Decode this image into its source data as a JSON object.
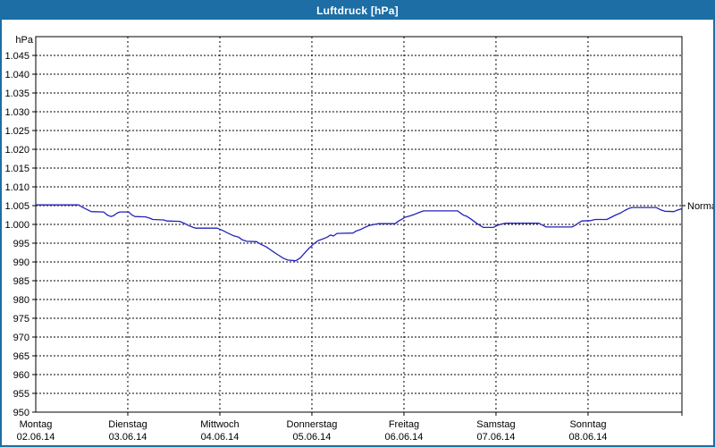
{
  "window": {
    "title": "Luftdruck [hPa]"
  },
  "theme": {
    "frame_color": "#1d6ea5",
    "title_text_color": "#ffffff",
    "plot_background": "#ffffff",
    "grid_color": "#000000",
    "axis_color": "#000000",
    "line_color": "#2222bb"
  },
  "chart_data": {
    "type": "line",
    "title": "Luftdruck [hPa]",
    "ylabel": "hPa",
    "ylim": [
      950,
      1050
    ],
    "grid": true,
    "yticks": [
      {
        "value": 1045,
        "label": "1.045"
      },
      {
        "value": 1040,
        "label": "1.040"
      },
      {
        "value": 1035,
        "label": "1.035"
      },
      {
        "value": 1030,
        "label": "1.030"
      },
      {
        "value": 1025,
        "label": "1.025"
      },
      {
        "value": 1020,
        "label": "1.020"
      },
      {
        "value": 1015,
        "label": "1.015"
      },
      {
        "value": 1010,
        "label": "1.010"
      },
      {
        "value": 1005,
        "label": "1.005"
      },
      {
        "value": 1000,
        "label": "1.000"
      },
      {
        "value": 995,
        "label": "995"
      },
      {
        "value": 990,
        "label": "990"
      },
      {
        "value": 985,
        "label": "985"
      },
      {
        "value": 980,
        "label": "980"
      },
      {
        "value": 975,
        "label": "975"
      },
      {
        "value": 970,
        "label": "970"
      },
      {
        "value": 965,
        "label": "965"
      },
      {
        "value": 960,
        "label": "960"
      },
      {
        "value": 955,
        "label": "955"
      },
      {
        "value": 950,
        "label": "950"
      }
    ],
    "x_axis": {
      "extent_days": 7.02,
      "days": [
        {
          "name": "Montag",
          "date": "02.06.14"
        },
        {
          "name": "Dienstag",
          "date": "03.06.14"
        },
        {
          "name": "Mittwoch",
          "date": "04.06.14"
        },
        {
          "name": "Donnerstag",
          "date": "05.06.14"
        },
        {
          "name": "Freitag",
          "date": "06.06.14"
        },
        {
          "name": "Samstag",
          "date": "07.06.14"
        },
        {
          "name": "Sonntag",
          "date": "08.06.14"
        }
      ]
    },
    "annotations": [
      {
        "label": "Normal",
        "value": 1005,
        "side": "right"
      }
    ],
    "series": [
      {
        "name": "Luftdruck",
        "unit": "hPa",
        "color": "#2222bb",
        "points_days_hpa": [
          [
            0.0,
            1005.2
          ],
          [
            0.466,
            1005.2
          ],
          [
            0.505,
            1004.6
          ],
          [
            0.553,
            1004.0
          ],
          [
            0.602,
            1003.4
          ],
          [
            0.738,
            1003.3
          ],
          [
            0.777,
            1002.5
          ],
          [
            0.816,
            1002.1
          ],
          [
            0.845,
            1002.3
          ],
          [
            0.883,
            1003.0
          ],
          [
            0.913,
            1003.3
          ],
          [
            1.01,
            1003.3
          ],
          [
            1.039,
            1002.6
          ],
          [
            1.078,
            1002.1
          ],
          [
            1.194,
            1002.0
          ],
          [
            1.233,
            1001.7
          ],
          [
            1.272,
            1001.3
          ],
          [
            1.388,
            1001.2
          ],
          [
            1.427,
            1000.9
          ],
          [
            1.563,
            1000.8
          ],
          [
            1.612,
            1000.3
          ],
          [
            1.65,
            999.8
          ],
          [
            1.699,
            999.3
          ],
          [
            1.738,
            999.0
          ],
          [
            1.971,
            999.0
          ],
          [
            2.029,
            998.4
          ],
          [
            2.087,
            997.7
          ],
          [
            2.146,
            997.0
          ],
          [
            2.204,
            996.6
          ],
          [
            2.243,
            995.9
          ],
          [
            2.291,
            995.5
          ],
          [
            2.398,
            995.4
          ],
          [
            2.447,
            994.7
          ],
          [
            2.505,
            994.0
          ],
          [
            2.563,
            993.0
          ],
          [
            2.631,
            991.9
          ],
          [
            2.689,
            991.0
          ],
          [
            2.738,
            990.5
          ],
          [
            2.825,
            990.3
          ],
          [
            2.874,
            991.1
          ],
          [
            2.922,
            992.4
          ],
          [
            2.971,
            993.7
          ],
          [
            3.019,
            994.8
          ],
          [
            3.068,
            995.7
          ],
          [
            3.117,
            996.1
          ],
          [
            3.165,
            996.6
          ],
          [
            3.204,
            997.2
          ],
          [
            3.233,
            996.9
          ],
          [
            3.272,
            997.6
          ],
          [
            3.447,
            997.7
          ],
          [
            3.476,
            998.2
          ],
          [
            3.524,
            998.6
          ],
          [
            3.573,
            999.2
          ],
          [
            3.621,
            999.7
          ],
          [
            3.68,
            1000.0
          ],
          [
            3.718,
            1000.2
          ],
          [
            3.903,
            1000.2
          ],
          [
            3.942,
            1000.9
          ],
          [
            3.981,
            1001.4
          ],
          [
            4.01,
            1001.9
          ],
          [
            4.058,
            1002.2
          ],
          [
            4.117,
            1002.7
          ],
          [
            4.165,
            1003.2
          ],
          [
            4.214,
            1003.6
          ],
          [
            4.583,
            1003.6
          ],
          [
            4.621,
            1002.9
          ],
          [
            4.65,
            1002.4
          ],
          [
            4.68,
            1002.2
          ],
          [
            4.718,
            1001.6
          ],
          [
            4.757,
            1000.9
          ],
          [
            4.796,
            1000.2
          ],
          [
            4.835,
            999.6
          ],
          [
            4.864,
            999.2
          ],
          [
            4.971,
            999.2
          ],
          [
            5.01,
            999.7
          ],
          [
            5.058,
            1000.1
          ],
          [
            5.107,
            1000.3
          ],
          [
            5.466,
            1000.3
          ],
          [
            5.515,
            999.7
          ],
          [
            5.544,
            999.3
          ],
          [
            5.825,
            999.3
          ],
          [
            5.864,
            999.8
          ],
          [
            5.903,
            1000.5
          ],
          [
            5.932,
            1000.9
          ],
          [
            6.029,
            1001.0
          ],
          [
            6.078,
            1001.3
          ],
          [
            6.204,
            1001.3
          ],
          [
            6.252,
            1001.9
          ],
          [
            6.301,
            1002.5
          ],
          [
            6.35,
            1003.0
          ],
          [
            6.398,
            1003.7
          ],
          [
            6.437,
            1004.2
          ],
          [
            6.476,
            1004.5
          ],
          [
            6.738,
            1004.5
          ],
          [
            6.786,
            1003.9
          ],
          [
            6.835,
            1003.5
          ],
          [
            6.932,
            1003.4
          ],
          [
            6.971,
            1003.8
          ],
          [
            7.01,
            1004.1
          ]
        ]
      }
    ]
  }
}
